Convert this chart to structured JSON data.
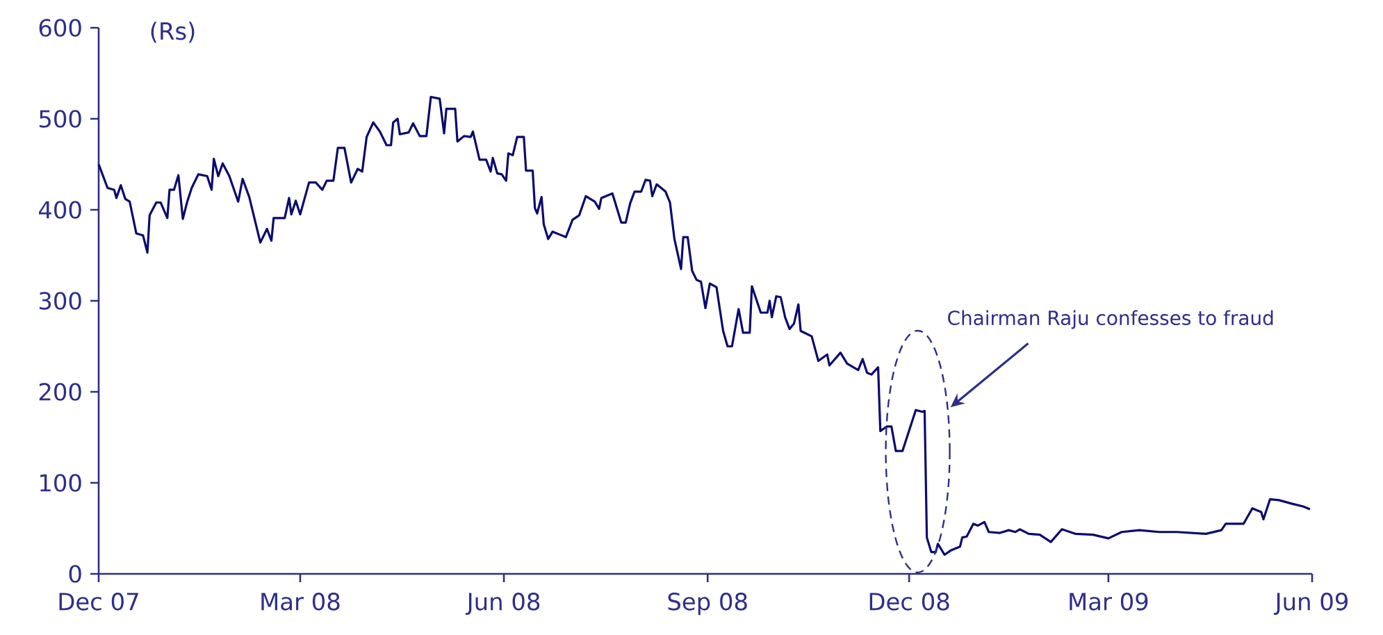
{
  "chart_data": {
    "type": "line",
    "ylabel": "(Rs)",
    "color": "#0a0a6e",
    "x": [
      "2007-12-01",
      "2007-12-05",
      "2007-12-08",
      "2007-12-09",
      "2007-12-11",
      "2007-12-13",
      "2007-12-15",
      "2007-12-18",
      "2007-12-21",
      "2007-12-23",
      "2007-12-24",
      "2007-12-27",
      "2007-12-29",
      "2008-01-01",
      "2008-01-02",
      "2008-01-04",
      "2008-01-06",
      "2008-01-08",
      "2008-01-10",
      "2008-01-12",
      "2008-01-15",
      "2008-01-19",
      "2008-01-21",
      "2008-01-22",
      "2008-01-24",
      "2008-01-26",
      "2008-01-29",
      "2008-02-02",
      "2008-02-04",
      "2008-02-07",
      "2008-02-12",
      "2008-02-15",
      "2008-02-17",
      "2008-02-18",
      "2008-02-23",
      "2008-02-25",
      "2008-02-26",
      "2008-02-28",
      "2008-03-01",
      "2008-03-05",
      "2008-03-08",
      "2008-03-11",
      "2008-03-13",
      "2008-03-16",
      "2008-03-18",
      "2008-03-21",
      "2008-03-24",
      "2008-03-27",
      "2008-03-29",
      "2008-03-31",
      "2008-04-03",
      "2008-04-06",
      "2008-04-09",
      "2008-04-11",
      "2008-04-12",
      "2008-04-14",
      "2008-04-15",
      "2008-04-19",
      "2008-04-21",
      "2008-04-24",
      "2008-04-27",
      "2008-04-29",
      "2008-05-03",
      "2008-05-05",
      "2008-05-06",
      "2008-05-10",
      "2008-05-11",
      "2008-05-14",
      "2008-05-17",
      "2008-05-18",
      "2008-05-21",
      "2008-05-24",
      "2008-05-26",
      "2008-05-27",
      "2008-05-29",
      "2008-05-31",
      "2008-06-02",
      "2008-06-03",
      "2008-06-05",
      "2008-06-07",
      "2008-06-10",
      "2008-06-11",
      "2008-06-14",
      "2008-06-15",
      "2008-06-16",
      "2008-06-18",
      "2008-06-19",
      "2008-06-21",
      "2008-06-23",
      "2008-06-26",
      "2008-06-29",
      "2008-07-02",
      "2008-07-05",
      "2008-07-08",
      "2008-07-12",
      "2008-07-14",
      "2008-07-15",
      "2008-07-20",
      "2008-07-24",
      "2008-07-26",
      "2008-07-28",
      "2008-07-30",
      "2008-08-02",
      "2008-08-04",
      "2008-08-06",
      "2008-08-07",
      "2008-08-09",
      "2008-08-13",
      "2008-08-15",
      "2008-08-17",
      "2008-08-20",
      "2008-08-21",
      "2008-08-23",
      "2008-08-25",
      "2008-08-27",
      "2008-08-29",
      "2008-08-31",
      "2008-09-02",
      "2008-09-05",
      "2008-09-08",
      "2008-09-10",
      "2008-09-12",
      "2008-09-15",
      "2008-09-17",
      "2008-09-20",
      "2008-09-21",
      "2008-09-25",
      "2008-09-28",
      "2008-09-29",
      "2008-09-30",
      "2008-10-02",
      "2008-10-04",
      "2008-10-06",
      "2008-10-08",
      "2008-10-10",
      "2008-10-12",
      "2008-10-13",
      "2008-10-18",
      "2008-10-21",
      "2008-10-25",
      "2008-10-26",
      "2008-10-31",
      "2008-11-03",
      "2008-11-08",
      "2008-11-10",
      "2008-11-12",
      "2008-11-14",
      "2008-11-17",
      "2008-11-18",
      "2008-11-21",
      "2008-11-23",
      "2008-11-25",
      "2008-11-28",
      "2008-12-04",
      "2008-12-07",
      "2008-12-08",
      "2008-12-09",
      "2008-12-11",
      "2008-12-13",
      "2008-12-14",
      "2008-12-17",
      "2008-12-20",
      "2008-12-24",
      "2008-12-25",
      "2008-12-27",
      "2008-12-30",
      "2009-01-01",
      "2009-01-04",
      "2009-01-06",
      "2009-01-11",
      "2009-01-15",
      "2009-01-18",
      "2009-01-20",
      "2009-01-24",
      "2009-01-29",
      "2009-02-03",
      "2009-02-08",
      "2009-02-14",
      "2009-02-22",
      "2009-03-01",
      "2009-03-07",
      "2009-03-15",
      "2009-03-24",
      "2009-04-01",
      "2009-04-14",
      "2009-04-21",
      "2009-04-23",
      "2009-05-01",
      "2009-05-05",
      "2009-05-09",
      "2009-05-10",
      "2009-05-13",
      "2009-05-17",
      "2009-05-23",
      "2009-05-28",
      "2009-05-31"
    ],
    "values": [
      450,
      424,
      422,
      413,
      427,
      412,
      409,
      374,
      372,
      353,
      394,
      408,
      408,
      391,
      422,
      422,
      438,
      390,
      409,
      424,
      439,
      437,
      422,
      456,
      437,
      451,
      437,
      409,
      434,
      414,
      364,
      379,
      366,
      391,
      391,
      413,
      395,
      410,
      395,
      430,
      430,
      422,
      432,
      432,
      468,
      468,
      430,
      445,
      442,
      480,
      496,
      486,
      471,
      471,
      496,
      500,
      483,
      485,
      495,
      481,
      481,
      524,
      522,
      484,
      511,
      511,
      475,
      481,
      480,
      486,
      455,
      455,
      442,
      457,
      440,
      439,
      432,
      462,
      460,
      480,
      480,
      443,
      443,
      402,
      396,
      414,
      384,
      368,
      376,
      373,
      370,
      389,
      394,
      415,
      409,
      401,
      413,
      418,
      386,
      386,
      407,
      420,
      420,
      433,
      432,
      415,
      428,
      420,
      408,
      368,
      335,
      370,
      370,
      333,
      323,
      321,
      292,
      319,
      315,
      267,
      250,
      250,
      291,
      265,
      265,
      316,
      287,
      287,
      300,
      282,
      305,
      304,
      282,
      269,
      275,
      296,
      267,
      261,
      234,
      241,
      229,
      243,
      231,
      224,
      236,
      221,
      219,
      227,
      157,
      162,
      162,
      135,
      135,
      180,
      178,
      179,
      40,
      24,
      24,
      33,
      21,
      26,
      30,
      40,
      41,
      55,
      53,
      57,
      46,
      45,
      48,
      46,
      49,
      44,
      43,
      35,
      49,
      44,
      43,
      39,
      46,
      48,
      46,
      46,
      44,
      48,
      55,
      55,
      72,
      68,
      60,
      82,
      81,
      77,
      74,
      71
    ],
    "xlim": [
      "2007-12-01",
      "2009-06-01"
    ],
    "xticks": [
      {
        "value": "2007-12-01",
        "label": "Dec 07"
      },
      {
        "value": "2008-03-01",
        "label": "Mar 08"
      },
      {
        "value": "2008-06-01",
        "label": "Jun 08"
      },
      {
        "value": "2008-09-01",
        "label": "Sep 08"
      },
      {
        "value": "2008-12-01",
        "label": "Dec 08"
      },
      {
        "value": "2009-03-01",
        "label": "Mar 09"
      },
      {
        "value": "2009-06-01",
        "label": "Jun 09"
      }
    ],
    "ylim": [
      0,
      600
    ],
    "yticks": [
      0,
      100,
      200,
      300,
      400,
      500,
      600
    ],
    "annotations": [
      "Chairman Raju confesses to fraud"
    ]
  }
}
